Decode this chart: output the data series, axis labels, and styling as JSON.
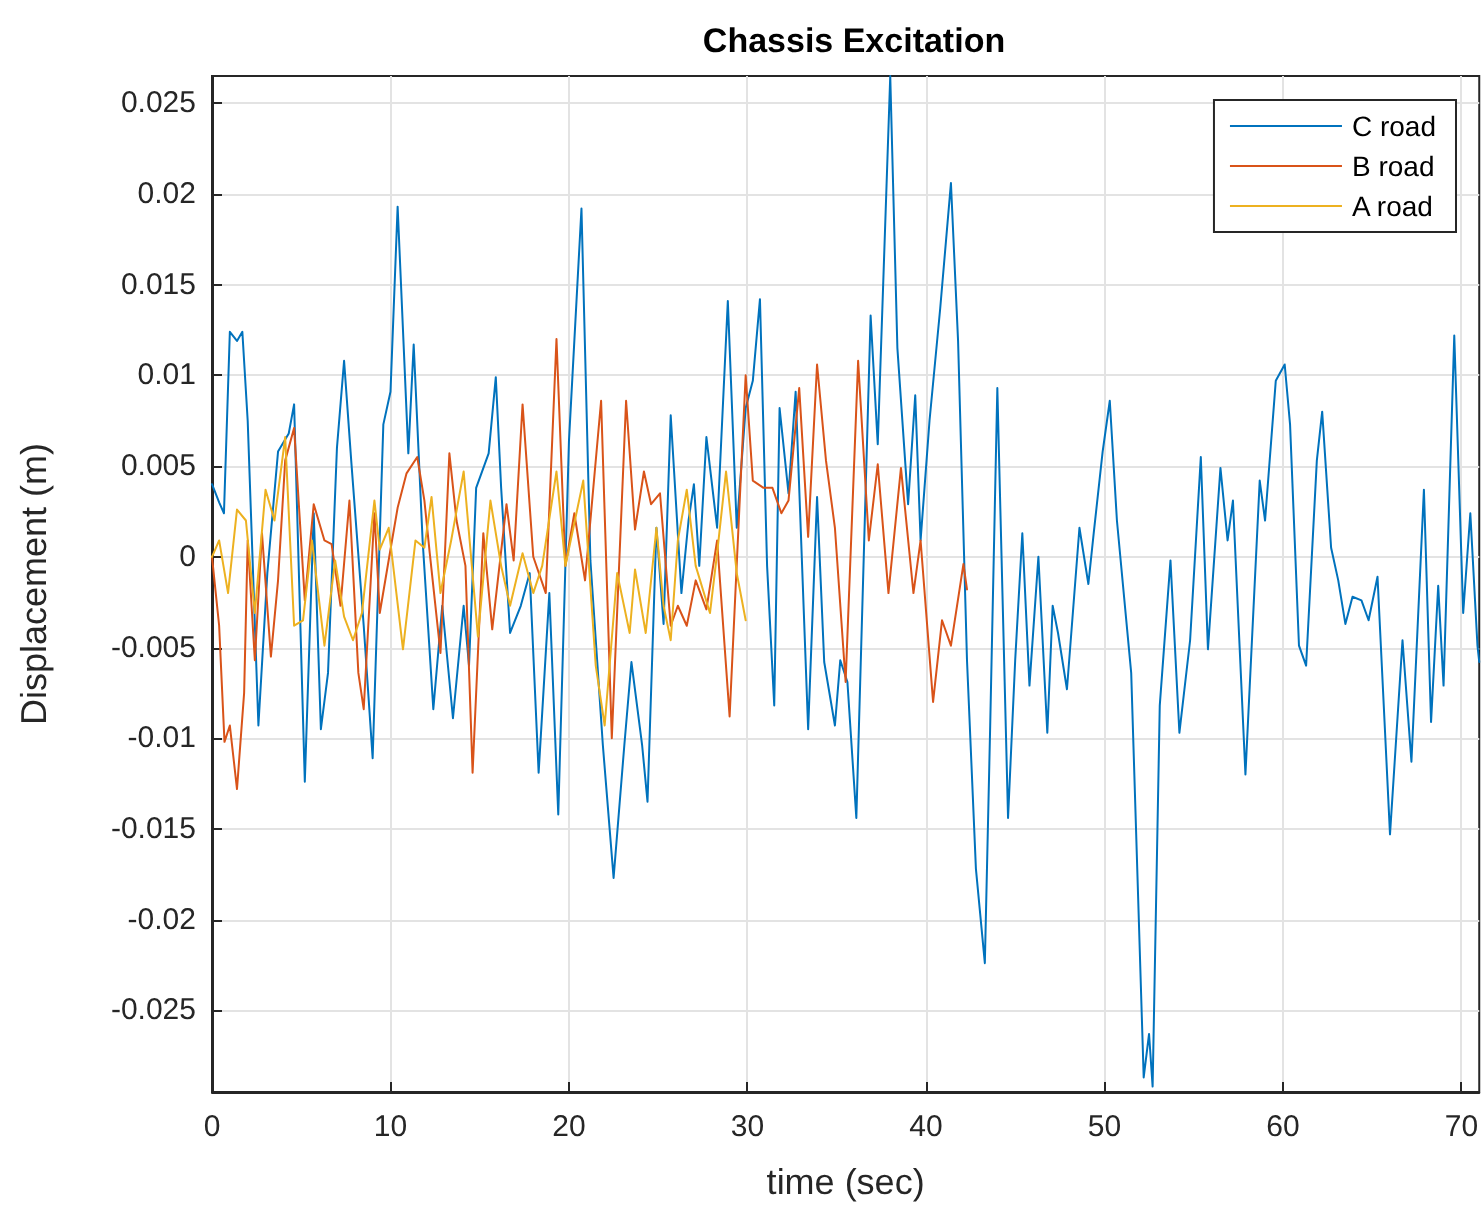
{
  "chart_data": {
    "type": "line",
    "title": "Chassis Excitation",
    "xlabel": "time (sec)",
    "ylabel": "Displacement (m)",
    "xlim": [
      0,
      71
    ],
    "xticks": [
      0,
      10,
      20,
      30,
      40,
      50,
      60,
      70
    ],
    "ylim": [
      -0.0295,
      0.0265
    ],
    "yticks": [
      -0.025,
      -0.02,
      -0.015,
      -0.01,
      -0.005,
      0,
      0.005,
      0.01,
      0.015,
      0.02,
      0.025
    ],
    "grid": true,
    "legend": "top right",
    "marker": "none",
    "line_style": "solid",
    "series": [
      {
        "name": "C road",
        "color": "#0072bd",
        "x": [
          0,
          0.4,
          0.67,
          1.0,
          1.4,
          1.7,
          2.0,
          2.6,
          3.1,
          3.7,
          4.3,
          4.6,
          5.2,
          5.7,
          6.1,
          6.5,
          7.0,
          7.4,
          7.8,
          8.5,
          9.0,
          9.6,
          10.0,
          10.4,
          11.0,
          11.3,
          11.8,
          12.4,
          12.9,
          13.5,
          14.1,
          14.4,
          14.8,
          15.5,
          15.9,
          16.2,
          16.7,
          17.3,
          17.8,
          18.3,
          18.9,
          19.4,
          20.0,
          20.7,
          21.2,
          21.9,
          22.5,
          23.1,
          23.5,
          24.1,
          24.4,
          24.9,
          25.3,
          25.7,
          26.3,
          26.7,
          27.0,
          27.3,
          27.7,
          28.3,
          28.9,
          29.4,
          29.9,
          30.3,
          30.7,
          31.1,
          31.5,
          31.8,
          32.3,
          32.7,
          33.4,
          33.9,
          34.3,
          34.9,
          35.2,
          35.6,
          36.1,
          36.9,
          37.3,
          38.0,
          38.4,
          39.0,
          39.4,
          39.7,
          40.2,
          40.8,
          41.4,
          41.8,
          42.3,
          42.8,
          43.3,
          43.6,
          44.0,
          44.6,
          45.0,
          45.4,
          45.8,
          46.3,
          46.8,
          47.1,
          47.4,
          47.9,
          48.6,
          49.1,
          49.4,
          49.9,
          50.3,
          50.7,
          51.5,
          52.2,
          52.5,
          52.7,
          53.1,
          53.7,
          54.2,
          54.8,
          55.4,
          55.8,
          56.5,
          56.9,
          57.2,
          57.9,
          58.7,
          59.0,
          59.6,
          60.1,
          60.4,
          60.9,
          61.3,
          61.9,
          62.2,
          62.7,
          63.1,
          63.5,
          63.9,
          64.4,
          64.8,
          65.3,
          66.0,
          66.7,
          67.2,
          67.9,
          68.3,
          68.7,
          69.0,
          69.6,
          70.1,
          70.5,
          70.9,
          71.0
        ],
        "values": [
          0.004,
          0.003,
          0.0024,
          0.0124,
          0.0119,
          0.0124,
          0.0075,
          -0.0093,
          -0.0009,
          0.0058,
          0.0068,
          0.0084,
          -0.0124,
          0.0024,
          -0.0095,
          -0.0064,
          0.006,
          0.0108,
          0.0053,
          -0.0038,
          -0.0111,
          0.0073,
          0.0091,
          0.0193,
          0.0057,
          0.0117,
          0.0009,
          -0.0084,
          -0.0027,
          -0.0089,
          -0.0027,
          -0.006,
          0.0038,
          0.0057,
          0.0099,
          0.0038,
          -0.0042,
          -0.0027,
          -0.0009,
          -0.0119,
          -0.002,
          -0.0142,
          0.0064,
          0.0192,
          -0.0002,
          -0.0104,
          -0.0177,
          -0.0104,
          -0.0058,
          -0.0104,
          -0.0135,
          0.0016,
          -0.0037,
          0.0078,
          -0.002,
          0.002,
          0.004,
          -0.0005,
          0.0066,
          0.0016,
          0.0141,
          0.0016,
          0.0082,
          0.0097,
          0.0142,
          -0.0005,
          -0.0082,
          0.0082,
          0.0035,
          0.0091,
          -0.0095,
          0.0033,
          -0.0058,
          -0.0093,
          -0.0057,
          -0.0069,
          -0.0144,
          0.0133,
          0.0062,
          0.0265,
          0.0115,
          0.0029,
          0.0089,
          0.0009,
          0.0075,
          0.0137,
          0.0206,
          0.0119,
          -0.0057,
          -0.0172,
          -0.0224,
          -0.0093,
          0.0093,
          -0.0144,
          -0.0057,
          0.0013,
          -0.0071,
          0,
          -0.0097,
          -0.0027,
          -0.0042,
          -0.0073,
          0.0016,
          -0.0015,
          0.0013,
          0.0058,
          0.0086,
          0.002,
          -0.0064,
          -0.0287,
          -0.0263,
          -0.0292,
          -0.0082,
          -0.0002,
          -0.0097,
          -0.0046,
          0.0055,
          -0.0051,
          0.0049,
          0.0009,
          0.0031,
          -0.012,
          0.0042,
          0.002,
          0.0097,
          0.0106,
          0.0073,
          -0.0049,
          -0.006,
          0.0053,
          0.008,
          0.0005,
          -0.0013,
          -0.0037,
          -0.0022,
          -0.0024,
          -0.0035,
          -0.0011,
          -0.0153,
          -0.0046,
          -0.0113,
          0.0037,
          -0.0091,
          -0.0016,
          -0.0071,
          0.0122,
          -0.0031,
          0.0024,
          -0.0049,
          -0.0058
        ]
      },
      {
        "name": "B road",
        "color": "#d95319",
        "x": [
          0,
          0.4,
          0.7,
          1.0,
          1.4,
          1.8,
          2.0,
          2.4,
          2.8,
          3.3,
          3.7,
          4.1,
          4.6,
          5.2,
          5.7,
          6.3,
          6.7,
          7.2,
          7.7,
          8.2,
          8.5,
          9.1,
          9.4,
          10.0,
          10.4,
          10.9,
          11.5,
          11.9,
          12.2,
          12.8,
          13.3,
          13.7,
          14.2,
          14.6,
          15.2,
          15.7,
          16.5,
          16.9,
          17.4,
          18.0,
          18.7,
          19.3,
          19.8,
          20.3,
          20.9,
          21.8,
          22.4,
          23.2,
          23.7,
          24.2,
          24.6,
          25.1,
          25.7,
          26.1,
          26.6,
          27.1,
          27.7,
          28.3,
          29.0,
          29.6,
          29.9,
          30.3,
          30.9,
          31.4,
          31.9,
          32.3,
          32.9,
          33.4,
          33.9,
          34.4,
          34.9,
          35.5,
          36.2,
          36.8,
          37.3,
          37.9,
          38.6,
          39.3,
          39.7,
          40.4,
          40.9,
          41.4,
          42.1,
          42.3
        ],
        "values": [
          0,
          -0.0038,
          -0.0102,
          -0.0093,
          -0.0128,
          -0.0075,
          0.0009,
          -0.0057,
          0.0013,
          -0.0055,
          -0.0013,
          0.0053,
          0.0071,
          -0.0024,
          0.0029,
          0.0009,
          0.0007,
          -0.0027,
          0.0031,
          -0.0064,
          -0.0084,
          0.0024,
          -0.0031,
          0.0004,
          0.0027,
          0.0046,
          0.0055,
          0.0031,
          0.0002,
          -0.0053,
          0.0057,
          0.002,
          -0.0005,
          -0.0119,
          0.0013,
          -0.004,
          0.0029,
          -0.0002,
          0.0084,
          0,
          -0.002,
          0.012,
          -0.0005,
          0.0024,
          -0.0013,
          0.0086,
          -0.01,
          0.0086,
          0.0015,
          0.0047,
          0.0029,
          0.0035,
          -0.0038,
          -0.0027,
          -0.0038,
          -0.0013,
          -0.0029,
          0.0009,
          -0.0088,
          0.0038,
          0.01,
          0.0042,
          0.0038,
          0.0038,
          0.0024,
          0.0031,
          0.0093,
          0.0011,
          0.0106,
          0.0053,
          0.0016,
          -0.0069,
          0.0108,
          0.0009,
          0.0051,
          -0.002,
          0.0049,
          -0.002,
          0.0009,
          -0.008,
          -0.0035,
          -0.0049,
          -0.0004,
          -0.0018
        ]
      },
      {
        "name": "A road",
        "color": "#edb120",
        "x": [
          0,
          0.4,
          0.9,
          1.4,
          1.9,
          2.4,
          3.0,
          3.5,
          4.1,
          4.6,
          5.1,
          5.6,
          6.3,
          6.9,
          7.4,
          7.9,
          8.4,
          9.1,
          9.4,
          9.9,
          10.7,
          11.4,
          11.9,
          12.3,
          12.8,
          13.4,
          14.1,
          14.9,
          15.6,
          16.2,
          16.7,
          17.4,
          18.0,
          18.5,
          19.3,
          19.8,
          20.8,
          21.5,
          22.0,
          22.7,
          23.4,
          23.7,
          24.3,
          24.9,
          25.3,
          25.7,
          26.1,
          26.6,
          27.1,
          27.9,
          28.3,
          28.8,
          29.4,
          29.9
        ],
        "values": [
          0,
          0.0009,
          -0.002,
          0.0026,
          0.002,
          -0.0031,
          0.0037,
          0.002,
          0.0066,
          -0.0038,
          -0.0035,
          0.0009,
          -0.0049,
          -0.0002,
          -0.0033,
          -0.0046,
          -0.0031,
          0.0031,
          0.0004,
          0.0016,
          -0.0051,
          0.0009,
          0.0005,
          0.0033,
          -0.002,
          0.0009,
          0.0047,
          -0.0044,
          0.0031,
          -0.0005,
          -0.0027,
          0.0002,
          -0.002,
          -0.0005,
          0.0047,
          -0.0005,
          0.0042,
          -0.006,
          -0.0093,
          -0.0009,
          -0.0042,
          -0.0007,
          -0.0042,
          0.0016,
          -0.0027,
          -0.0046,
          0.0009,
          0.0037,
          -0.0005,
          -0.0031,
          0.0002,
          0.0047,
          -0.0009,
          -0.0035
        ]
      }
    ]
  }
}
